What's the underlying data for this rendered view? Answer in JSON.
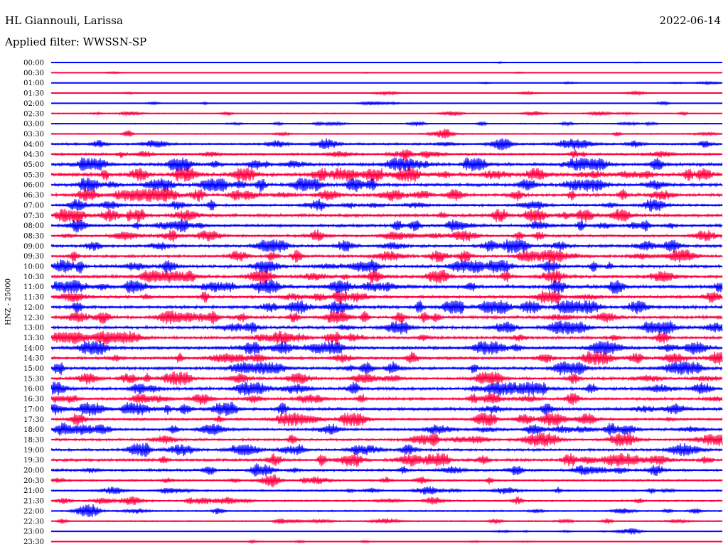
{
  "header": {
    "station": "HL Giannouli, Larissa",
    "date": "2022-06-14",
    "filter": "Applied filter: WWSSN-SP"
  },
  "colors": {
    "blue": "#0000ff",
    "red": "#ff0040"
  },
  "chart_data": {
    "type": "helicorder",
    "ylabel": "HNZ - 25000",
    "colors_cycle": [
      "blue",
      "red"
    ],
    "rows": [
      {
        "label": "00:00",
        "amp": 0.6
      },
      {
        "label": "00:30",
        "amp": 0.8
      },
      {
        "label": "01:00",
        "amp": 0.9
      },
      {
        "label": "01:30",
        "amp": 1.2
      },
      {
        "label": "02:00",
        "amp": 1.3
      },
      {
        "label": "02:30",
        "amp": 1.6
      },
      {
        "label": "03:00",
        "amp": 1.6
      },
      {
        "label": "03:30",
        "amp": 2.0
      },
      {
        "label": "04:00",
        "amp": 3.5
      },
      {
        "label": "04:30",
        "amp": 3.5
      },
      {
        "label": "05:00",
        "amp": 5.0
      },
      {
        "label": "05:30",
        "amp": 6.0
      },
      {
        "label": "06:00",
        "amp": 5.0
      },
      {
        "label": "06:30",
        "amp": 5.0
      },
      {
        "label": "07:00",
        "amp": 4.0
      },
      {
        "label": "07:30",
        "amp": 4.8
      },
      {
        "label": "08:00",
        "amp": 4.5
      },
      {
        "label": "08:30",
        "amp": 4.0
      },
      {
        "label": "09:00",
        "amp": 4.5
      },
      {
        "label": "09:30",
        "amp": 4.5
      },
      {
        "label": "10:00",
        "amp": 5.0
      },
      {
        "label": "10:30",
        "amp": 5.0
      },
      {
        "label": "11:00",
        "amp": 5.5
      },
      {
        "label": "11:30",
        "amp": 4.5
      },
      {
        "label": "12:00",
        "amp": 5.0
      },
      {
        "label": "12:30",
        "amp": 5.0
      },
      {
        "label": "13:00",
        "amp": 4.8
      },
      {
        "label": "13:30",
        "amp": 4.5
      },
      {
        "label": "14:00",
        "amp": 5.0
      },
      {
        "label": "14:30",
        "amp": 4.5
      },
      {
        "label": "15:00",
        "amp": 4.8
      },
      {
        "label": "15:30",
        "amp": 4.5
      },
      {
        "label": "16:00",
        "amp": 5.0
      },
      {
        "label": "16:30",
        "amp": 4.5
      },
      {
        "label": "17:00",
        "amp": 4.8
      },
      {
        "label": "17:30",
        "amp": 4.0
      },
      {
        "label": "18:00",
        "amp": 4.2
      },
      {
        "label": "18:30",
        "amp": 4.0
      },
      {
        "label": "19:00",
        "amp": 4.0
      },
      {
        "label": "19:30",
        "amp": 4.5
      },
      {
        "label": "20:00",
        "amp": 4.0
      },
      {
        "label": "20:30",
        "amp": 3.0
      },
      {
        "label": "21:00",
        "amp": 2.8
      },
      {
        "label": "21:30",
        "amp": 3.0
      },
      {
        "label": "22:00",
        "amp": 2.5
      },
      {
        "label": "22:30",
        "amp": 2.0
      },
      {
        "label": "23:00",
        "amp": 1.2
      },
      {
        "label": "23:30",
        "amp": 0.8
      }
    ]
  }
}
